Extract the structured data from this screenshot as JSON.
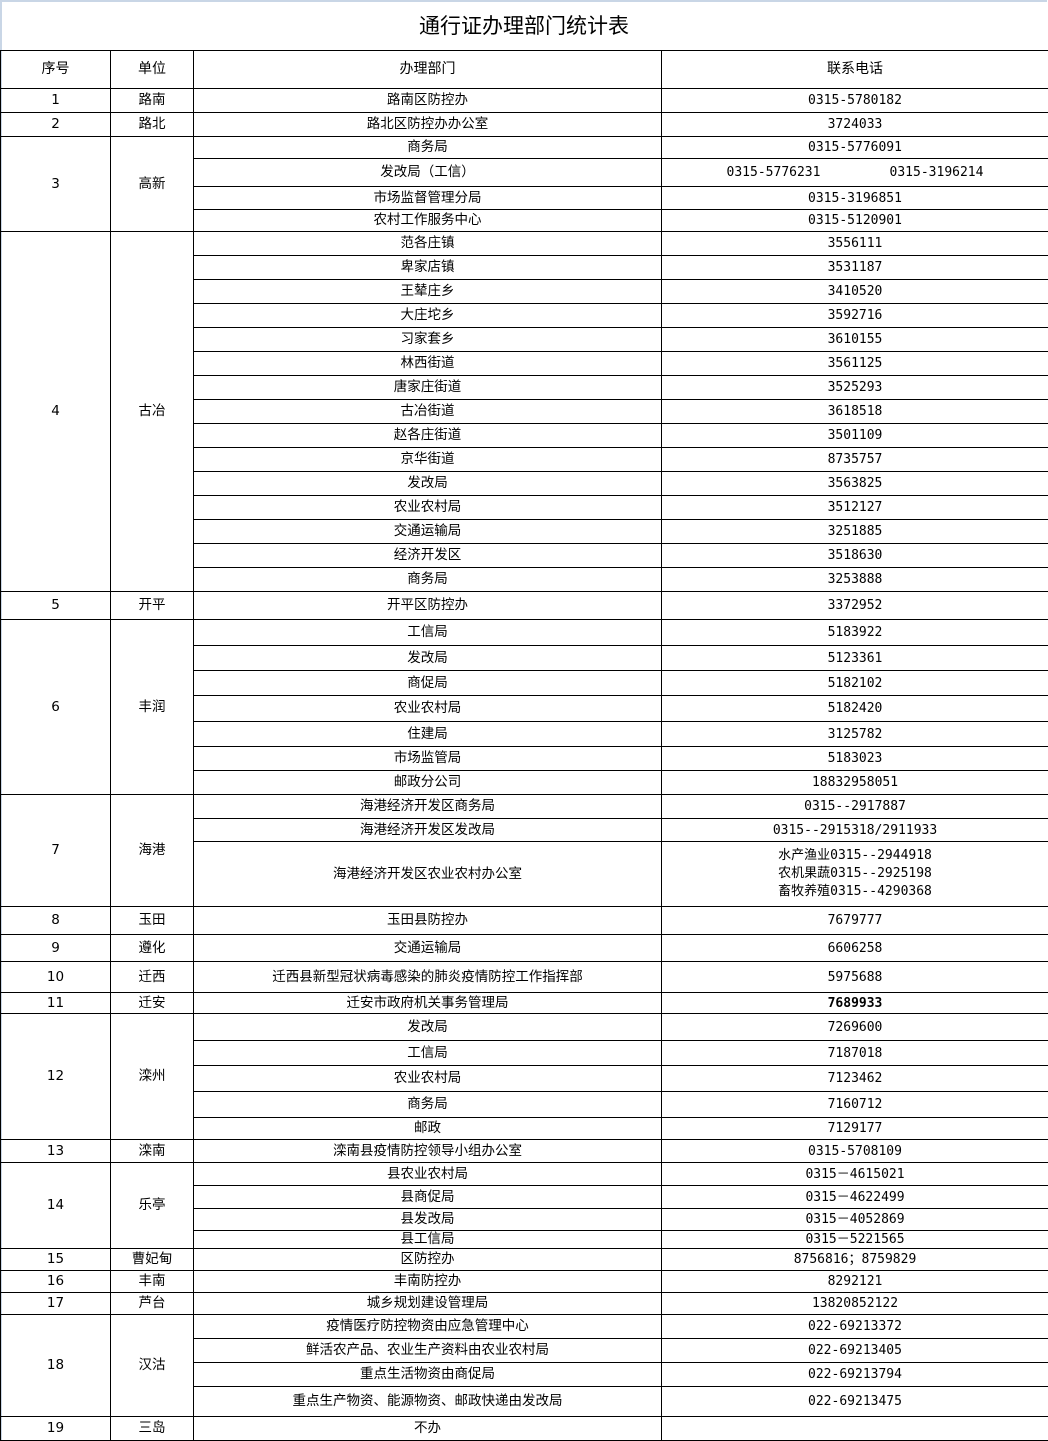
{
  "title": "通行证办理部门统计表",
  "headers": [
    "序号",
    "单位",
    "办理部门",
    "联系电话"
  ],
  "groups": [
    {
      "no": "1",
      "unit": "路南",
      "rows": [
        {
          "dept": "路南区防控办",
          "phone": [
            "0315-5780182"
          ]
        }
      ]
    },
    {
      "no": "2",
      "unit": "路北",
      "rows": [
        {
          "dept": "路北区防控办办公室",
          "phone": [
            "3724033"
          ]
        }
      ]
    },
    {
      "no": "3",
      "unit": "高新",
      "rows": [
        {
          "dept": "商务局",
          "phone": [
            "0315-5776091"
          ]
        },
        {
          "dept": "发改局（工信）",
          "phone": [
            "0315-5776231",
            "0315-3196214"
          ],
          "inline": true
        },
        {
          "dept": "市场监督管理分局",
          "phone": [
            "0315-3196851"
          ]
        },
        {
          "dept": "农村工作服务中心",
          "phone": [
            "0315-5120901"
          ]
        }
      ]
    },
    {
      "no": "4",
      "unit": "古冶",
      "rows": [
        {
          "dept": "范各庄镇",
          "phone": [
            "3556111"
          ]
        },
        {
          "dept": "卑家店镇",
          "phone": [
            "3531187"
          ]
        },
        {
          "dept": "王辇庄乡",
          "phone": [
            "3410520"
          ]
        },
        {
          "dept": "大庄坨乡",
          "phone": [
            "3592716"
          ]
        },
        {
          "dept": "习家套乡",
          "phone": [
            "3610155"
          ]
        },
        {
          "dept": "林西街道",
          "phone": [
            "3561125"
          ]
        },
        {
          "dept": "唐家庄街道",
          "phone": [
            "3525293"
          ]
        },
        {
          "dept": "古冶街道",
          "phone": [
            "3618518"
          ]
        },
        {
          "dept": "赵各庄街道",
          "phone": [
            "3501109"
          ]
        },
        {
          "dept": "京华街道",
          "phone": [
            "8735757"
          ]
        },
        {
          "dept": "发改局",
          "phone": [
            "3563825"
          ]
        },
        {
          "dept": "农业农村局",
          "phone": [
            "3512127"
          ]
        },
        {
          "dept": "交通运输局",
          "phone": [
            "3251885"
          ]
        },
        {
          "dept": "经济开发区",
          "phone": [
            "3518630"
          ]
        },
        {
          "dept": "商务局",
          "phone": [
            "3253888"
          ]
        }
      ]
    },
    {
      "no": "5",
      "unit": "开平",
      "rows": [
        {
          "dept": "开平区防控办",
          "phone": [
            "3372952"
          ]
        }
      ]
    },
    {
      "no": "6",
      "unit": "丰润",
      "rows": [
        {
          "dept": "工信局",
          "phone": [
            "5183922"
          ]
        },
        {
          "dept": "发改局",
          "phone": [
            "5123361"
          ]
        },
        {
          "dept": "商促局",
          "phone": [
            "5182102"
          ]
        },
        {
          "dept": "农业农村局",
          "phone": [
            "5182420"
          ]
        },
        {
          "dept": "住建局",
          "phone": [
            "3125782"
          ]
        },
        {
          "dept": "市场监管局",
          "phone": [
            "5183023"
          ]
        },
        {
          "dept": "邮政分公司",
          "phone": [
            "18832958051"
          ]
        }
      ]
    },
    {
      "no": "7",
      "unit": "海港",
      "rows": [
        {
          "dept": "海港经济开发区商务局",
          "phone": [
            "0315--2917887"
          ]
        },
        {
          "dept": "海港经济开发区发改局",
          "phone": [
            "0315--2915318/2911933"
          ]
        },
        {
          "dept": "海港经济开发区农业农村办公室",
          "phone": [
            "水产渔业0315--2944918",
            "农机果蔬0315--2925198",
            "畜牧养殖0315--4290368"
          ]
        }
      ]
    },
    {
      "no": "8",
      "unit": "玉田",
      "rows": [
        {
          "dept": "玉田县防控办",
          "phone": [
            "7679777"
          ]
        }
      ]
    },
    {
      "no": "9",
      "unit": "遵化",
      "rows": [
        {
          "dept": "交通运输局",
          "phone": [
            "6606258"
          ]
        }
      ]
    },
    {
      "no": "10",
      "unit": "迁西",
      "rows": [
        {
          "dept": "迁西县新型冠状病毒感染的肺炎疫情防控工作指挥部",
          "phone": [
            "5975688"
          ]
        }
      ]
    },
    {
      "no": "11",
      "unit": "迁安",
      "rows": [
        {
          "dept": "迁安市政府机关事务管理局",
          "phone": [
            "7689933"
          ],
          "bold": true
        }
      ]
    },
    {
      "no": "12",
      "unit": "滦州",
      "rows": [
        {
          "dept": "发改局",
          "phone": [
            "7269600"
          ]
        },
        {
          "dept": "工信局",
          "phone": [
            "7187018"
          ]
        },
        {
          "dept": "农业农村局",
          "phone": [
            "7123462"
          ]
        },
        {
          "dept": "商务局",
          "phone": [
            "7160712"
          ]
        },
        {
          "dept": "邮政",
          "phone": [
            "7129177"
          ]
        }
      ]
    },
    {
      "no": "13",
      "unit": "滦南",
      "rows": [
        {
          "dept": "滦南县疫情防控领导小组办公室",
          "phone": [
            "0315-5708109"
          ]
        }
      ]
    },
    {
      "no": "14",
      "unit": "乐亭",
      "rows": [
        {
          "dept": "县农业农村局",
          "phone": [
            "0315－4615021"
          ]
        },
        {
          "dept": "县商促局",
          "phone": [
            "0315－4622499"
          ]
        },
        {
          "dept": "县发改局",
          "phone": [
            "0315－4052869"
          ]
        },
        {
          "dept": "县工信局",
          "phone": [
            "0315－5221565"
          ]
        }
      ]
    },
    {
      "no": "15",
      "unit": "曹妃甸",
      "rows": [
        {
          "dept": "区防控办",
          "phone": [
            "8756816；8759829"
          ]
        }
      ]
    },
    {
      "no": "16",
      "unit": "丰南",
      "rows": [
        {
          "dept": "丰南防控办",
          "phone": [
            "8292121"
          ]
        }
      ]
    },
    {
      "no": "17",
      "unit": "芦台",
      "rows": [
        {
          "dept": "城乡规划建设管理局",
          "phone": [
            "13820852122"
          ]
        }
      ]
    },
    {
      "no": "18",
      "unit": "汉沽",
      "rows": [
        {
          "dept": "疫情医疗防控物资由应急管理中心",
          "phone": [
            "022-69213372"
          ]
        },
        {
          "dept": "鲜活农产品、农业生产资料由农业农村局",
          "phone": [
            "022-69213405"
          ]
        },
        {
          "dept": "重点生活物资由商促局",
          "phone": [
            "022-69213794"
          ]
        },
        {
          "dept": "重点生产物资、能源物资、邮政快递由发改局",
          "phone": [
            "022-69213475"
          ]
        }
      ]
    },
    {
      "no": "19",
      "unit": "三岛",
      "rows": [
        {
          "dept": "不办",
          "phone": []
        }
      ]
    }
  ]
}
